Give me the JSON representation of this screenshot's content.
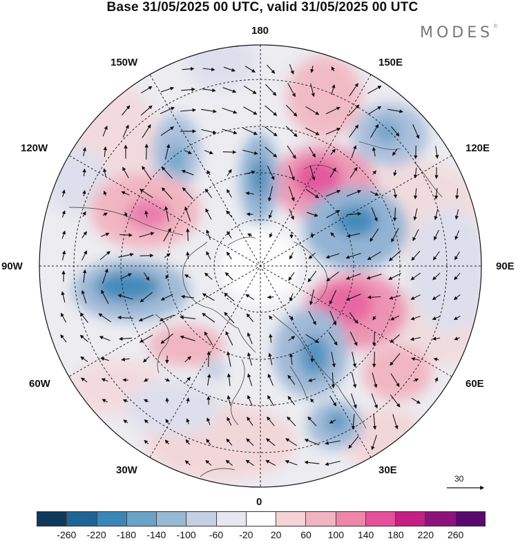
{
  "title": "Base 31/05/2025 00 UTC, valid 31/05/2025 00 UTC",
  "brand": "MODES",
  "brand_mark": "©",
  "longitude_labels": {
    "n180": "180",
    "e150": "150E",
    "e120": "120E",
    "e90": "90E",
    "e60": "60E",
    "e30": "30E",
    "s0": "0",
    "w30": "30W",
    "w60": "60W",
    "w90": "90W",
    "w120": "120W",
    "w150": "150W"
  },
  "vector_reference": "30",
  "colorbar": {
    "ticks": [
      "-260",
      "-220",
      "-180",
      "-140",
      "-100",
      "-60",
      "-20",
      "20",
      "60",
      "100",
      "140",
      "180",
      "220",
      "260"
    ],
    "colors": [
      "#0e3a5c",
      "#1f6494",
      "#3a86b8",
      "#6aa3c8",
      "#97b9d6",
      "#c3cfe3",
      "#e7e7f2",
      "#ffffff",
      "#f5d3d6",
      "#f2b4c0",
      "#ee86aa",
      "#e4519a",
      "#c41f84",
      "#8c137c",
      "#5a0a6e"
    ]
  }
}
